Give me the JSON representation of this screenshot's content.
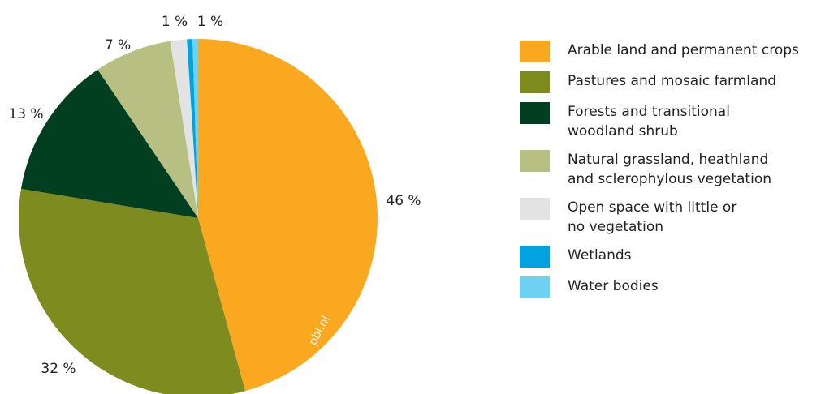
{
  "watermark": "pbl.nl",
  "chart_data": {
    "type": "pie",
    "start": "12 o'clock",
    "direction": "clockwise",
    "legend_position": "right",
    "slices": [
      {
        "label": "Arable land and permanent crops",
        "value": 46,
        "display": "46 %",
        "color": "#F9A81F"
      },
      {
        "label": "Pastures and mosaic farmland",
        "value": 32,
        "display": "32 %",
        "color": "#7E8C1F"
      },
      {
        "label": "Forests and transitional\nwoodland shrub",
        "value": 13,
        "display": "13 %",
        "color": "#023F20"
      },
      {
        "label": "Natural grassland, heathland\nand sclerophylous vegetation",
        "value": 7,
        "display": "7 %",
        "color": "#B8BF83"
      },
      {
        "label": "Open space with little or\nno vegetation",
        "value": 1.5,
        "display": "",
        "color": "#E3E3E3"
      },
      {
        "label": "Wetlands",
        "value": 0.5,
        "display": "1 %",
        "color": "#00A3E0"
      },
      {
        "label": "Water bodies",
        "value": 0.5,
        "display": "1 %",
        "color": "#6FD1F4"
      }
    ]
  }
}
